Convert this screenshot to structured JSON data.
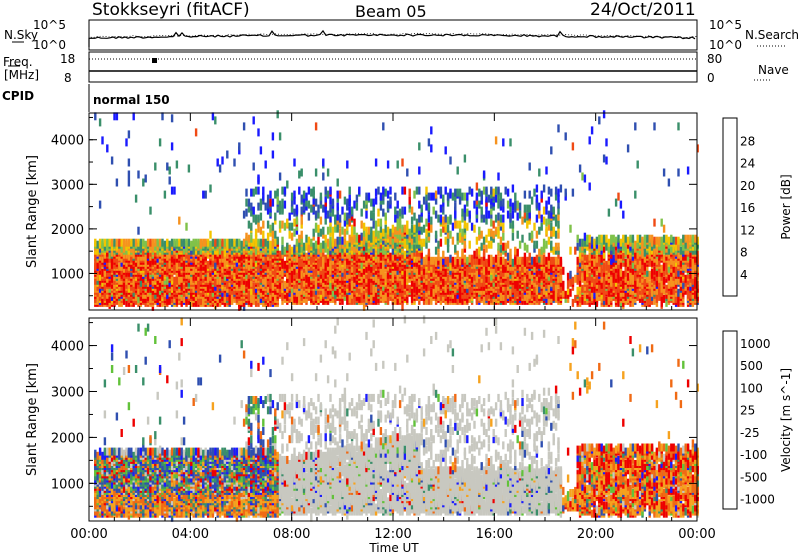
{
  "header": {
    "site": "Stokkseyri (fitACF)",
    "beam": "Beam 05",
    "date": "24/Oct/2011"
  },
  "strip": {
    "nsky_label": "N.Sky",
    "nsearch_label": "N.Search",
    "freq_label": "Freq.",
    "freq_unit": "[MHz]",
    "nave_label": "Nave",
    "cpid_label": "CPID",
    "cpid_value": "normal 150",
    "nsky_ticks": [
      "10^5",
      "10^0"
    ],
    "nsearch_ticks": [
      "10^5",
      "10^0"
    ],
    "freq_ticks": [
      "18",
      "8"
    ],
    "nave_ticks": [
      "80",
      "0"
    ]
  },
  "chart_data": [
    {
      "type": "heatmap",
      "name": "power",
      "ylabel": "Slant Range [km]",
      "xlabel": "",
      "x_ticks": [
        "00:00",
        "04:00",
        "08:00",
        "12:00",
        "16:00",
        "20:00",
        "00:00"
      ],
      "x_hours": [
        0,
        4,
        8,
        12,
        16,
        20,
        24
      ],
      "ylim": [
        180,
        4600
      ],
      "y_ticks": [
        1000,
        2000,
        3000,
        4000
      ],
      "colorbar": {
        "label": "Power [dB]",
        "ticks": [
          "4",
          "8",
          "12",
          "16",
          "20",
          "24",
          "28"
        ],
        "colors": [
          "#1a1aff",
          "#2f4fb0",
          "#3a8f6a",
          "#7fc24a",
          "#f3c400",
          "#f6921e",
          "#f04a14",
          "#ee0000"
        ]
      },
      "scatter_regions": [
        {
          "hours": [
            0.3,
            7.4
          ],
          "range_km": [
            300,
            1700
          ],
          "value": "high"
        },
        {
          "hours": [
            7.4,
            13.0
          ],
          "range_km": [
            400,
            1500
          ],
          "value": "high"
        },
        {
          "hours": [
            13.0,
            18.6
          ],
          "range_km": [
            400,
            1300
          ],
          "value": "high"
        },
        {
          "hours": [
            19.2,
            24.0
          ],
          "range_km": [
            300,
            1800
          ],
          "value": "high"
        },
        {
          "hours": [
            9.0,
            18.5
          ],
          "range_km": [
            1500,
            2900
          ],
          "value": "low"
        }
      ]
    },
    {
      "type": "heatmap",
      "name": "velocity",
      "ylabel": "Slant Range [km]",
      "xlabel": "Time UT",
      "x_ticks": [
        "00:00",
        "04:00",
        "08:00",
        "12:00",
        "16:00",
        "20:00",
        "00:00"
      ],
      "x_hours": [
        0,
        4,
        8,
        12,
        16,
        20,
        24
      ],
      "ylim": [
        180,
        4600
      ],
      "y_ticks": [
        1000,
        2000,
        3000,
        4000
      ],
      "colorbar": {
        "label": "Velocity [m s^-1]",
        "ticks": [
          "1000",
          "500",
          "100",
          "25",
          "-25",
          "-100",
          "-500",
          "-1000"
        ],
        "colors": [
          "#1a1aff",
          "#2f4fb0",
          "#3a8f6a",
          "#62c23a",
          "#c8c8c0",
          "#f6a21e",
          "#f06a14",
          "#ee0000"
        ]
      },
      "scatter_regions": [
        {
          "hours": [
            0.3,
            7.4
          ],
          "range_km": [
            300,
            1700
          ],
          "value": "mixed"
        },
        {
          "hours": [
            7.4,
            18.5
          ],
          "range_km": [
            300,
            2300
          ],
          "value": "near-zero"
        },
        {
          "hours": [
            19.2,
            24.0
          ],
          "range_km": [
            300,
            1600
          ],
          "value": "negative"
        }
      ]
    }
  ]
}
